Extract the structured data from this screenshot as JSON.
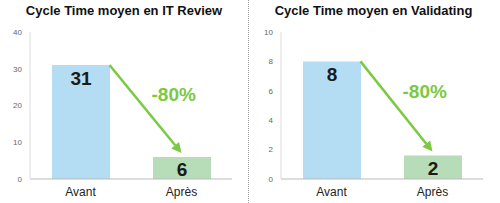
{
  "chart_data": [
    {
      "type": "bar",
      "title": "Cycle Time moyen en IT Review",
      "categories": [
        "Avant",
        "Après"
      ],
      "values": [
        31,
        6
      ],
      "colors": [
        "#b4dcf2",
        "#b6dcb8"
      ],
      "ylim": [
        0,
        40
      ],
      "yticks": [
        0,
        10,
        20,
        30,
        40
      ],
      "grid": false,
      "data_labels": true,
      "annotation": "-80%"
    },
    {
      "type": "bar",
      "title": "Cycle Time moyen en Validating",
      "categories": [
        "Avant",
        "Après"
      ],
      "values": [
        8,
        1.6
      ],
      "value_labels": [
        "8",
        "2"
      ],
      "colors": [
        "#b4dcf2",
        "#b6dcb8"
      ],
      "ylim": [
        0,
        10
      ],
      "yticks": [
        0,
        2,
        4,
        6,
        8,
        10
      ],
      "grid": false,
      "data_labels": true,
      "annotation": "-80%"
    }
  ]
}
